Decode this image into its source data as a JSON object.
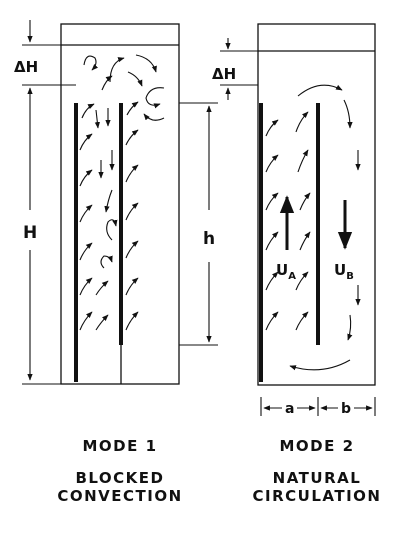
{
  "mode1": {
    "symbols": {
      "delta_h": "ΔH",
      "height_h": "H",
      "height_small_h": "h"
    },
    "caption_title": "MODE 1",
    "caption_line1": "BLOCKED",
    "caption_line2": "CONVECTION"
  },
  "mode2": {
    "symbols": {
      "delta_h": "ΔH",
      "velocity_a": "U",
      "velocity_a_sub": "A",
      "velocity_b": "U",
      "velocity_b_sub": "B",
      "width_a": "a",
      "width_b": "b"
    },
    "caption_title": "MODE 2",
    "caption_line1": "NATURAL",
    "caption_line2": "CIRCULATION"
  },
  "colors": {
    "ink": "#111111",
    "paper": "#ffffff"
  }
}
